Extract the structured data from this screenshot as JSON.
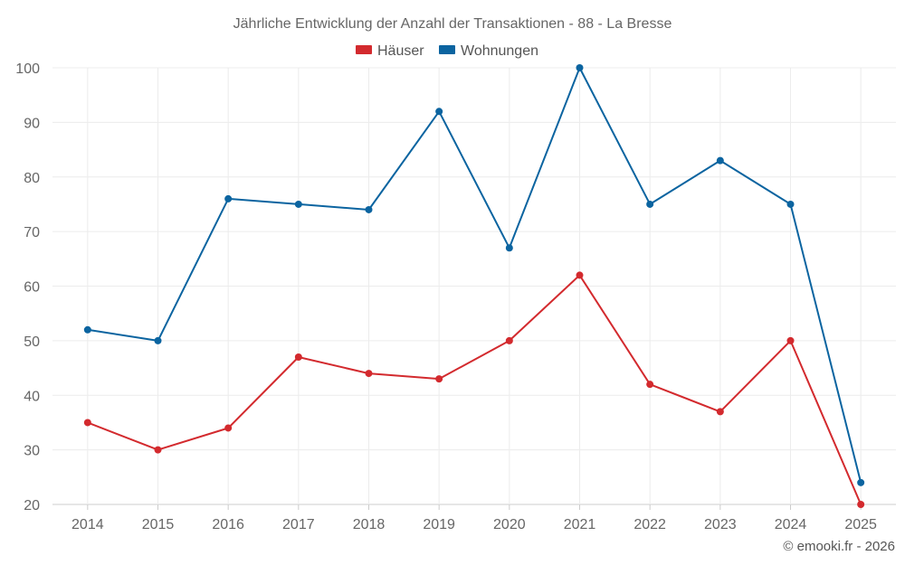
{
  "chart_data": {
    "type": "line",
    "title": "Jährliche Entwicklung der Anzahl der Transaktionen - 88 - La Bresse",
    "x": [
      "2014",
      "2015",
      "2016",
      "2017",
      "2018",
      "2019",
      "2020",
      "2021",
      "2022",
      "2023",
      "2024",
      "2025"
    ],
    "ylim": [
      20,
      100
    ],
    "yticks": [
      20,
      30,
      40,
      50,
      60,
      70,
      80,
      90,
      100
    ],
    "grid": true,
    "legend_position": "top-center",
    "series": [
      {
        "name": "Häuser",
        "color": "#d32a2e",
        "values": [
          35,
          30,
          34,
          47,
          44,
          43,
          50,
          62,
          42,
          37,
          50,
          20
        ]
      },
      {
        "name": "Wohnungen",
        "color": "#0b64a0",
        "values": [
          52,
          50,
          76,
          75,
          74,
          92,
          67,
          100,
          75,
          83,
          75,
          24
        ]
      }
    ],
    "credit": "© emooki.fr - 2026"
  }
}
